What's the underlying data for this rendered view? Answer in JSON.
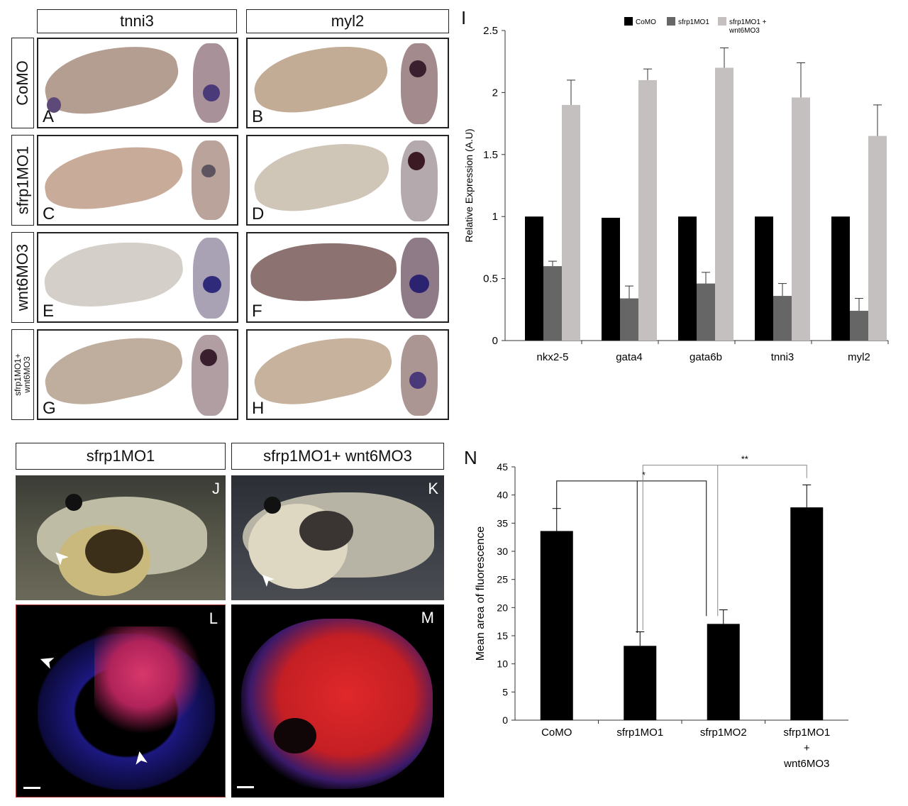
{
  "top_left": {
    "col_headers": [
      "tnni3",
      "myl2"
    ],
    "row_labels": [
      "CoMO",
      "sfrp1MO1",
      "wnt6MO3",
      "sfrp1MO1+\nwnt6MO3"
    ],
    "panel_letters": [
      "A",
      "B",
      "C",
      "D",
      "E",
      "F",
      "G",
      "H"
    ]
  },
  "bottom_left": {
    "col_headers": [
      "sfrp1MO1",
      "sfrp1MO1+ wnt6MO3"
    ],
    "panel_letters": [
      "J",
      "K",
      "L",
      "M"
    ]
  },
  "chart_letters": {
    "I": "I",
    "N": "N"
  },
  "chart_data": [
    {
      "type": "bar",
      "panel": "I",
      "ylabel": "Relative Expression (A.U)",
      "ylim": [
        0,
        2.5
      ],
      "yticks": [
        "0",
        "0.5",
        "1",
        "1.5",
        "2",
        "2.5"
      ],
      "categories": [
        "nkx2-5",
        "gata4",
        "gata6b",
        "tnni3",
        "myl2"
      ],
      "legend": [
        "CoMO",
        "sfrp1MO1",
        "sfrp1MO1 +\nwnt6MO3"
      ],
      "legend_position": "top",
      "series": [
        {
          "name": "CoMO",
          "color": "#000000",
          "values": [
            1.0,
            0.99,
            1.0,
            1.0,
            1.0
          ],
          "errors": [
            0,
            0,
            0,
            0,
            0
          ]
        },
        {
          "name": "sfrp1MO1",
          "color": "#666666",
          "values": [
            0.6,
            0.34,
            0.46,
            0.36,
            0.24
          ],
          "errors": [
            0.04,
            0.1,
            0.09,
            0.1,
            0.1
          ]
        },
        {
          "name": "sfrp1MO1 + wnt6MO3",
          "color": "#c4c0c0",
          "values": [
            1.9,
            2.1,
            2.2,
            1.96,
            1.65
          ],
          "errors": [
            0.2,
            0.09,
            0.16,
            0.28,
            0.25
          ]
        }
      ]
    },
    {
      "type": "bar",
      "panel": "N",
      "ylabel": "Mean area of fluorescence",
      "ylim": [
        0,
        45
      ],
      "yticks": [
        "0",
        "5",
        "10",
        "15",
        "20",
        "25",
        "30",
        "35",
        "40",
        "45"
      ],
      "categories": [
        "CoMO",
        "sfrp1MO1",
        "sfrp1MO2",
        "sfrp1MO1\n+\nwnt6MO3"
      ],
      "series": [
        {
          "color": "#000000",
          "values": [
            33.6,
            13.2,
            17.1,
            37.8
          ],
          "errors": [
            4.0,
            2.5,
            2.5,
            4.0
          ]
        }
      ],
      "significance": [
        {
          "label": "*",
          "from": "CoMO",
          "to": [
            "sfrp1MO1",
            "sfrp1MO2"
          ]
        },
        {
          "label": "**",
          "from": "sfrp1MO1+wnt6MO3",
          "to": [
            "sfrp1MO1",
            "sfrp1MO2"
          ]
        }
      ]
    }
  ]
}
